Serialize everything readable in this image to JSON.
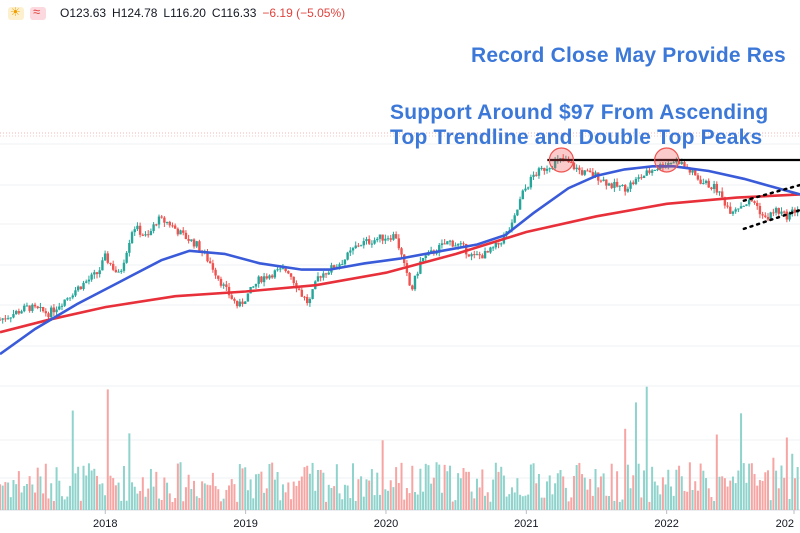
{
  "ohlc": {
    "open_label": "O",
    "open": "123.63",
    "high_label": "H",
    "high": "124.78",
    "low_label": "L",
    "low": "116.20",
    "close_label": "C",
    "close": "116.33",
    "change": "−6.19 (−5.05%)",
    "badge_icons": [
      "sun-icon",
      "wave-icon"
    ]
  },
  "annotations": {
    "line1": "Record Close May Provide Res",
    "line2": "Support Around $97 From Ascending",
    "line3": "Top Trendline and Double Top Peaks"
  },
  "chart_data": {
    "type": "candlestick",
    "x_ticks": [
      "2018",
      "2019",
      "2020",
      "2021",
      "2022",
      "202"
    ],
    "x_range": [
      2017.25,
      2022.95
    ],
    "colors": {
      "up": "#26a69a",
      "down": "#ef5350",
      "ma_short": "#3a5bd9",
      "ma_long": "#e8303a",
      "annotation": "#3c78d8",
      "support_line": "#000000",
      "trend_dots": "#000000"
    },
    "price_path": [
      [
        2017.25,
        48
      ],
      [
        2017.45,
        52
      ],
      [
        2017.6,
        50
      ],
      [
        2017.8,
        58
      ],
      [
        2017.95,
        63
      ],
      [
        2018.0,
        68
      ],
      [
        2018.1,
        62
      ],
      [
        2018.2,
        78
      ],
      [
        2018.3,
        74
      ],
      [
        2018.37,
        80
      ],
      [
        2018.45,
        79
      ],
      [
        2018.55,
        75
      ],
      [
        2018.65,
        72
      ],
      [
        2018.75,
        66
      ],
      [
        2018.85,
        58
      ],
      [
        2018.95,
        52
      ],
      [
        2019.0,
        55
      ],
      [
        2019.1,
        61
      ],
      [
        2019.2,
        63
      ],
      [
        2019.3,
        64
      ],
      [
        2019.4,
        56
      ],
      [
        2019.45,
        53
      ],
      [
        2019.52,
        62
      ],
      [
        2019.6,
        64
      ],
      [
        2019.7,
        67
      ],
      [
        2019.8,
        72
      ],
      [
        2019.95,
        74
      ],
      [
        2020.07,
        75
      ],
      [
        2020.13,
        65
      ],
      [
        2020.18,
        57
      ],
      [
        2020.25,
        67
      ],
      [
        2020.35,
        70
      ],
      [
        2020.45,
        73
      ],
      [
        2020.55,
        71
      ],
      [
        2020.62,
        68
      ],
      [
        2020.72,
        69
      ],
      [
        2020.8,
        72
      ],
      [
        2020.9,
        78
      ],
      [
        2020.97,
        88
      ],
      [
        2021.05,
        94
      ],
      [
        2021.15,
        97
      ],
      [
        2021.25,
        99
      ],
      [
        2021.3,
        98
      ],
      [
        2021.4,
        95
      ],
      [
        2021.5,
        94
      ],
      [
        2021.6,
        91
      ],
      [
        2021.7,
        90
      ],
      [
        2021.8,
        93
      ],
      [
        2021.9,
        96
      ],
      [
        2022.0,
        98
      ],
      [
        2022.08,
        99
      ],
      [
        2022.15,
        96
      ],
      [
        2022.25,
        92
      ],
      [
        2022.35,
        90
      ],
      [
        2022.45,
        83
      ],
      [
        2022.55,
        85
      ],
      [
        2022.62,
        86
      ],
      [
        2022.7,
        80
      ],
      [
        2022.78,
        83
      ],
      [
        2022.85,
        81
      ],
      [
        2022.95,
        84
      ]
    ],
    "ma_short": [
      [
        2017.25,
        37
      ],
      [
        2017.5,
        45
      ],
      [
        2017.8,
        53
      ],
      [
        2018.1,
        60
      ],
      [
        2018.4,
        67
      ],
      [
        2018.6,
        70
      ],
      [
        2018.85,
        69
      ],
      [
        2019.1,
        66
      ],
      [
        2019.4,
        64
      ],
      [
        2019.6,
        64
      ],
      [
        2019.85,
        66
      ],
      [
        2020.1,
        67.5
      ],
      [
        2020.4,
        70
      ],
      [
        2020.65,
        72
      ],
      [
        2020.85,
        75
      ],
      [
        2021.05,
        82
      ],
      [
        2021.3,
        90
      ],
      [
        2021.5,
        94
      ],
      [
        2021.7,
        96
      ],
      [
        2021.9,
        97
      ],
      [
        2022.05,
        97
      ],
      [
        2022.3,
        95.5
      ],
      [
        2022.55,
        93
      ],
      [
        2022.75,
        90.5
      ],
      [
        2022.95,
        88
      ]
    ],
    "ma_long": [
      [
        2017.25,
        44
      ],
      [
        2017.6,
        48
      ],
      [
        2018.0,
        52
      ],
      [
        2018.5,
        55.5
      ],
      [
        2019.0,
        57
      ],
      [
        2019.5,
        59
      ],
      [
        2020.0,
        63
      ],
      [
        2020.5,
        69
      ],
      [
        2021.0,
        76
      ],
      [
        2021.5,
        81
      ],
      [
        2022.0,
        85
      ],
      [
        2022.5,
        87
      ],
      [
        2022.95,
        88
      ]
    ],
    "support_line": {
      "from": [
        2021.15,
        99
      ],
      "to": [
        2022.95,
        99
      ]
    },
    "peak_circles": [
      [
        2021.25,
        99
      ],
      [
        2022.0,
        99
      ]
    ],
    "trend_channel": {
      "upper": [
        [
          2022.55,
          86
        ],
        [
          2022.95,
          91
        ]
      ],
      "lower": [
        [
          2022.55,
          77
        ],
        [
          2022.95,
          83
        ]
      ]
    },
    "volume_note": "relative volume bars along bottom panel"
  }
}
